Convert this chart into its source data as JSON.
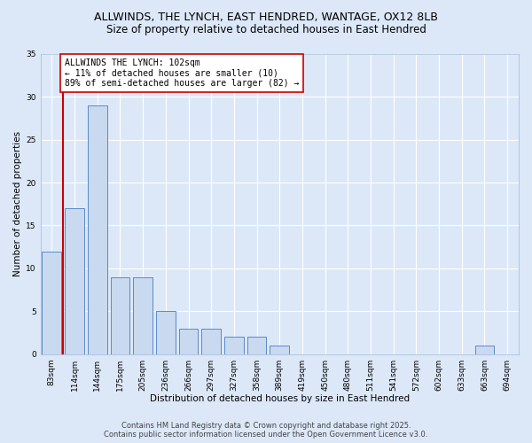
{
  "title1": "ALLWINDS, THE LYNCH, EAST HENDRED, WANTAGE, OX12 8LB",
  "title2": "Size of property relative to detached houses in East Hendred",
  "xlabel": "Distribution of detached houses by size in East Hendred",
  "ylabel": "Number of detached properties",
  "categories": [
    "83sqm",
    "114sqm",
    "144sqm",
    "175sqm",
    "205sqm",
    "236sqm",
    "266sqm",
    "297sqm",
    "327sqm",
    "358sqm",
    "389sqm",
    "419sqm",
    "450sqm",
    "480sqm",
    "511sqm",
    "541sqm",
    "572sqm",
    "602sqm",
    "633sqm",
    "663sqm",
    "694sqm"
  ],
  "values": [
    12,
    17,
    29,
    9,
    9,
    5,
    3,
    3,
    2,
    2,
    1,
    0,
    0,
    0,
    0,
    0,
    0,
    0,
    0,
    1,
    0
  ],
  "bar_color": "#c9d9f0",
  "bar_edge_color": "#5a8ac6",
  "vline_color": "#cc0000",
  "annotation_text": "ALLWINDS THE LYNCH: 102sqm\n← 11% of detached houses are smaller (10)\n89% of semi-detached houses are larger (82) →",
  "annotation_box_color": "white",
  "annotation_box_edge_color": "#cc0000",
  "ylim": [
    0,
    35
  ],
  "yticks": [
    0,
    5,
    10,
    15,
    20,
    25,
    30,
    35
  ],
  "footer1": "Contains HM Land Registry data © Crown copyright and database right 2025.",
  "footer2": "Contains public sector information licensed under the Open Government Licence v3.0.",
  "bg_color": "#dce8f8",
  "plot_bg_color": "#dce8f8",
  "title_fontsize": 9,
  "subtitle_fontsize": 8.5,
  "axis_label_fontsize": 7.5,
  "tick_fontsize": 6.5,
  "annotation_fontsize": 7,
  "footer_fontsize": 6
}
